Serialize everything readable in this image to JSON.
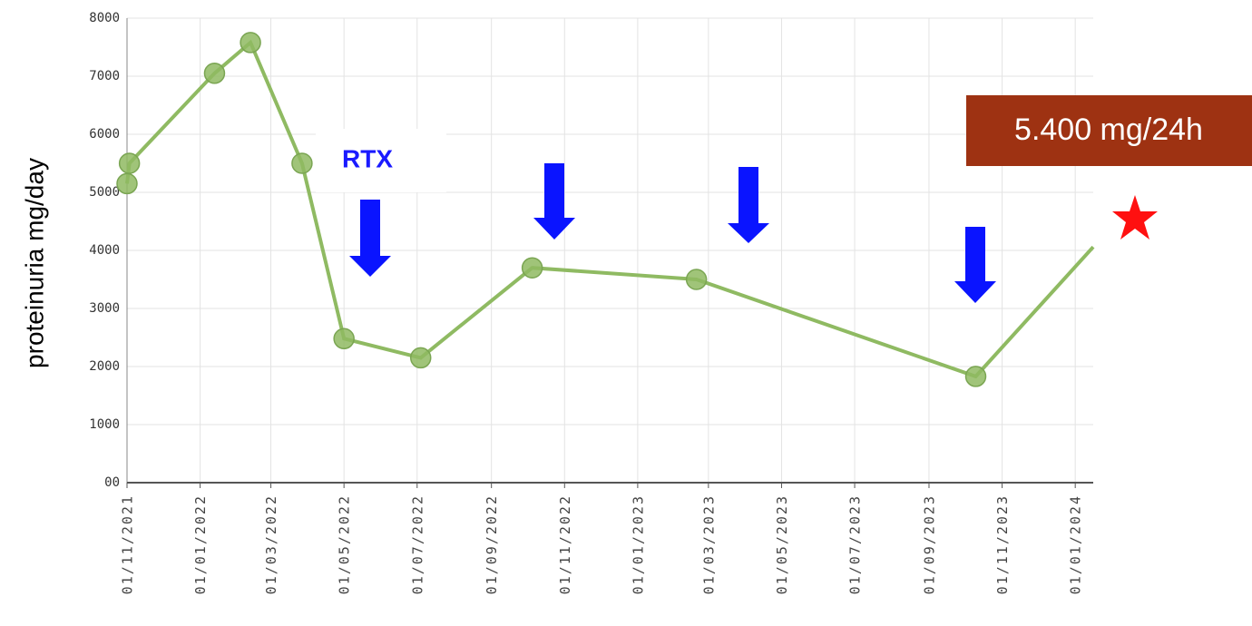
{
  "chart_data": {
    "type": "line",
    "y_label": "proteinuria mg/day",
    "x": [
      "2021-11-01",
      "2021-11-03",
      "2022-01-13",
      "2022-02-12",
      "2022-03-27",
      "2022-05-01",
      "2022-07-04",
      "2022-10-05",
      "2023-02-19",
      "2023-10-10",
      "2024-01-16"
    ],
    "series": [
      {
        "name": "proteinuria",
        "color": "#8fba62",
        "values": [
          5150,
          5500,
          7050,
          7580,
          5500,
          2480,
          2150,
          3700,
          3500,
          1830,
          4060
        ]
      }
    ],
    "xlim": [
      "2021-11-01",
      "2024-01-16"
    ],
    "xticks": [
      {
        "value": "2021-11-01",
        "label": "01/11/2021"
      },
      {
        "value": "2022-01-01",
        "label": "01/01/2022"
      },
      {
        "value": "2022-03-01",
        "label": "01/03/2022"
      },
      {
        "value": "2022-05-01",
        "label": "01/05/2022"
      },
      {
        "value": "2022-07-01",
        "label": "01/07/2022"
      },
      {
        "value": "2022-09-01",
        "label": "01/09/2022"
      },
      {
        "value": "2022-11-01",
        "label": "01/11/2022"
      },
      {
        "value": "2023-01-01",
        "label": "01/01/2023"
      },
      {
        "value": "2023-03-01",
        "label": "01/03/2023"
      },
      {
        "value": "2023-05-01",
        "label": "01/05/2023"
      },
      {
        "value": "2023-07-01",
        "label": "01/07/2023"
      },
      {
        "value": "2023-09-01",
        "label": "01/09/2023"
      },
      {
        "value": "2023-11-01",
        "label": "01/11/2023"
      },
      {
        "value": "2024-01-01",
        "label": "01/01/2024"
      }
    ],
    "ylim": [
      0,
      8000
    ],
    "yticks": [
      {
        "value": 0,
        "label": "00"
      },
      1000,
      2000,
      3000,
      4000,
      5000,
      6000,
      7000,
      8000
    ],
    "grid": true,
    "annotations": [
      "RTX",
      "5.400 mg/24h"
    ]
  }
}
